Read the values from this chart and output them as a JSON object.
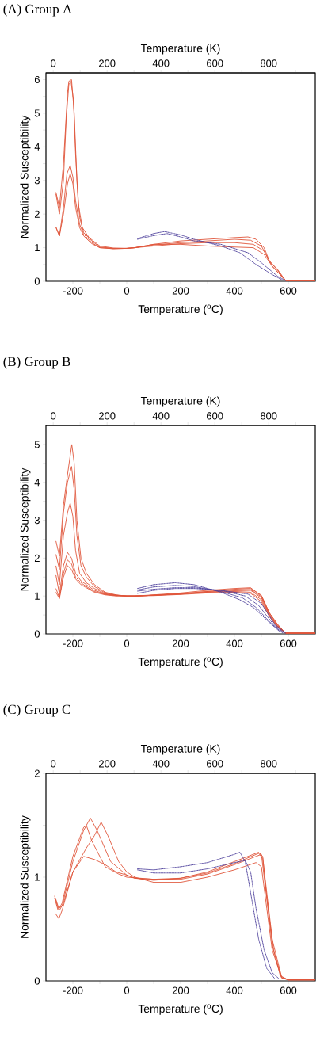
{
  "chart_data": [
    {
      "type": "line",
      "title": "(A) Group A",
      "xlabel": "Temperature ($^{o}$C)",
      "x2label": "Temperature (K)",
      "ylabel": "Normalized Susceptibility",
      "xlim": [
        -300,
        700
      ],
      "xticks": [
        -200,
        {
          "value": -100,
          "label": null
        },
        0,
        {
          "value": 100,
          "label": null
        },
        200,
        {
          "value": 300,
          "label": null
        },
        400,
        {
          "value": 500,
          "label": null
        },
        600
      ],
      "x2lim": [
        -27,
        973
      ],
      "x2ticks": [
        0,
        {
          "value": 100,
          "label": null
        },
        200,
        {
          "value": 300,
          "label": null
        },
        400,
        {
          "value": 500,
          "label": null
        },
        600,
        {
          "value": 700,
          "label": null
        },
        800,
        {
          "value": 900,
          "label": null
        }
      ],
      "ylim": [
        0,
        6.2
      ],
      "yticks": [
        0,
        {
          "value": 0.5,
          "label": null
        },
        1,
        {
          "value": 1.5,
          "label": null
        },
        2,
        {
          "value": 2.5,
          "label": null
        },
        3,
        {
          "value": 3.5,
          "label": null
        },
        4,
        {
          "value": 4.5,
          "label": null
        },
        5,
        {
          "value": 5.5,
          "label": null
        },
        6
      ],
      "series": [
        {
          "color": "#e0553a",
          "line_style": "solid",
          "x": [
            -263,
            -250,
            -235,
            -220,
            -215,
            -205,
            -195,
            -185,
            -175,
            -160,
            -130,
            -100,
            -50,
            0,
            30,
            100,
            200,
            300,
            400,
            450,
            480,
            510,
            530,
            560,
            590,
            700
          ],
          "values": [
            2.65,
            2.2,
            3.5,
            5.6,
            5.95,
            6.0,
            5.0,
            3.0,
            1.9,
            1.45,
            1.2,
            1.02,
            0.98,
            0.98,
            1.0,
            1.1,
            1.2,
            1.25,
            1.3,
            1.32,
            1.25,
            1.0,
            0.6,
            0.35,
            0.02,
            0.02
          ]
        },
        {
          "color": "#e0553a",
          "line_style": "solid",
          "x": [
            -263,
            -250,
            -235,
            -225,
            -215,
            -207,
            -198,
            -190,
            -180,
            -165,
            -140,
            -100,
            -50,
            0,
            30,
            100,
            200,
            300,
            400,
            460,
            500,
            530,
            560,
            590,
            700
          ],
          "values": [
            2.6,
            2.0,
            3.0,
            4.8,
            5.85,
            5.95,
            5.4,
            3.8,
            2.3,
            1.6,
            1.3,
            1.05,
            0.99,
            0.98,
            1.0,
            1.08,
            1.15,
            1.2,
            1.25,
            1.22,
            1.05,
            0.6,
            0.33,
            0.02,
            0.02
          ]
        },
        {
          "color": "#e0553a",
          "line_style": "solid",
          "x": [
            -263,
            -250,
            -235,
            -222,
            -210,
            -200,
            -190,
            -175,
            -160,
            -130,
            -100,
            -50,
            0,
            30,
            100,
            200,
            300,
            400,
            470,
            510,
            540,
            590,
            700
          ],
          "values": [
            1.62,
            1.35,
            2.2,
            3.2,
            3.45,
            3.1,
            2.4,
            1.7,
            1.4,
            1.15,
            1.0,
            0.97,
            0.98,
            1.0,
            1.1,
            1.1,
            1.05,
            1.02,
            1.0,
            0.8,
            0.45,
            0.02,
            0.02
          ]
        },
        {
          "color": "#e0553a",
          "line_style": "solid",
          "x": [
            -263,
            -250,
            -235,
            -220,
            -210,
            -200,
            -190,
            -175,
            -160,
            -130,
            -100,
            -50,
            0,
            30,
            100,
            200,
            300,
            400,
            470,
            510,
            540,
            590,
            700
          ],
          "values": [
            1.6,
            1.35,
            2.0,
            2.9,
            3.2,
            2.9,
            2.2,
            1.6,
            1.35,
            1.12,
            1.0,
            0.97,
            0.98,
            1.0,
            1.05,
            1.12,
            1.15,
            1.15,
            1.1,
            0.9,
            0.45,
            0.02,
            0.02
          ]
        },
        {
          "color": "#4b3d9a",
          "line_style": "dotted",
          "x": [
            40,
            100,
            140,
            200,
            250,
            350,
            420,
            480,
            540,
            580
          ],
          "values": [
            1.27,
            1.42,
            1.48,
            1.38,
            1.25,
            1.05,
            0.85,
            0.5,
            0.2,
            0.03
          ]
        },
        {
          "color": "#4b3d9a",
          "line_style": "dotted",
          "x": [
            40,
            100,
            150,
            200,
            250,
            350,
            450,
            500,
            560,
            590
          ],
          "values": [
            1.25,
            1.36,
            1.42,
            1.32,
            1.2,
            1.1,
            0.85,
            0.55,
            0.15,
            0.02
          ]
        }
      ]
    },
    {
      "type": "line",
      "title": "(B) Group B",
      "xlabel": "Temperature ($^{o}$C)",
      "x2label": "Temperature (K)",
      "ylabel": "Normalized Susceptibility",
      "xlim": [
        -300,
        700
      ],
      "xticks": [
        -200,
        {
          "value": -100,
          "label": null
        },
        0,
        {
          "value": 100,
          "label": null
        },
        200,
        {
          "value": 300,
          "label": null
        },
        400,
        {
          "value": 500,
          "label": null
        },
        600
      ],
      "x2lim": [
        -27,
        973
      ],
      "x2ticks": [
        0,
        {
          "value": 100,
          "label": null
        },
        200,
        {
          "value": 300,
          "label": null
        },
        400,
        {
          "value": 500,
          "label": null
        },
        600,
        {
          "value": 700,
          "label": null
        },
        800,
        {
          "value": 900,
          "label": null
        }
      ],
      "ylim": [
        0,
        5.5
      ],
      "yticks": [
        0,
        {
          "value": 0.5,
          "label": null
        },
        1,
        {
          "value": 1.5,
          "label": null
        },
        2,
        {
          "value": 2.5,
          "label": null
        },
        3,
        {
          "value": 3.5,
          "label": null
        },
        4,
        {
          "value": 4.5,
          "label": null
        },
        5
      ],
      "series": [
        {
          "color": "#e0553a",
          "line_style": "solid",
          "x": [
            -263,
            -250,
            -235,
            -220,
            -210,
            -204,
            -195,
            -185,
            -170,
            -150,
            -120,
            -80,
            -40,
            0,
            30,
            100,
            200,
            300,
            400,
            460,
            500,
            530,
            560,
            590,
            700
          ],
          "values": [
            2.45,
            2.05,
            3.4,
            4.2,
            4.7,
            5.0,
            4.5,
            3.0,
            2.0,
            1.6,
            1.3,
            1.1,
            1.03,
            1.0,
            1.0,
            1.03,
            1.08,
            1.15,
            1.2,
            1.22,
            1.0,
            0.55,
            0.25,
            0.02,
            0.02
          ]
        },
        {
          "color": "#e0553a",
          "line_style": "solid",
          "x": [
            -263,
            -250,
            -235,
            -220,
            -205,
            -195,
            -185,
            -170,
            -150,
            -120,
            -80,
            -40,
            0,
            30,
            100,
            200,
            300,
            400,
            460,
            500,
            530,
            560,
            590,
            700
          ],
          "values": [
            2.1,
            1.7,
            3.2,
            4.0,
            4.42,
            3.8,
            2.6,
            1.8,
            1.5,
            1.25,
            1.08,
            1.02,
            1.0,
            1.0,
            1.02,
            1.06,
            1.12,
            1.18,
            1.2,
            1.02,
            0.55,
            0.25,
            0.02,
            0.02
          ]
        },
        {
          "color": "#e0553a",
          "line_style": "solid",
          "x": [
            -263,
            -250,
            -235,
            -220,
            -210,
            -200,
            -190,
            -175,
            -150,
            -120,
            -80,
            -40,
            0,
            30,
            100,
            200,
            300,
            400,
            460,
            500,
            530,
            560,
            590,
            700
          ],
          "values": [
            1.8,
            1.3,
            2.6,
            3.2,
            3.45,
            3.1,
            2.2,
            1.6,
            1.35,
            1.2,
            1.06,
            1.02,
            1.0,
            1.0,
            1.02,
            1.06,
            1.12,
            1.16,
            1.17,
            0.98,
            0.52,
            0.22,
            0.02,
            0.02
          ]
        },
        {
          "color": "#e0553a",
          "line_style": "solid",
          "x": [
            -263,
            -250,
            -235,
            -220,
            -205,
            -190,
            -170,
            -150,
            -120,
            -80,
            -40,
            0,
            30,
            100,
            200,
            300,
            400,
            460,
            500,
            530,
            560,
            590,
            700
          ],
          "values": [
            1.55,
            1.05,
            1.8,
            2.15,
            2.0,
            1.6,
            1.4,
            1.3,
            1.15,
            1.05,
            1.02,
            1.0,
            1.0,
            1.02,
            1.05,
            1.1,
            1.14,
            1.15,
            0.95,
            0.5,
            0.2,
            0.02,
            0.02
          ]
        },
        {
          "color": "#e0553a",
          "line_style": "solid",
          "x": [
            -263,
            -250,
            -235,
            -220,
            -205,
            -190,
            -170,
            -150,
            -120,
            -80,
            -40,
            0,
            30,
            100,
            200,
            300,
            400,
            460,
            500,
            530,
            560,
            590,
            700
          ],
          "values": [
            1.2,
            0.95,
            1.6,
            1.95,
            1.85,
            1.5,
            1.35,
            1.25,
            1.12,
            1.04,
            1.01,
            1.0,
            1.0,
            1.02,
            1.05,
            1.1,
            1.12,
            1.1,
            0.9,
            0.48,
            0.2,
            0.02,
            0.02
          ]
        },
        {
          "color": "#e0553a",
          "line_style": "solid",
          "x": [
            -263,
            -250,
            -235,
            -220,
            -205,
            -190,
            -170,
            -150,
            -120,
            -80,
            -40,
            0,
            30,
            100,
            200,
            300,
            400,
            460,
            500,
            530,
            560,
            590,
            700
          ],
          "values": [
            1.1,
            0.93,
            1.5,
            1.8,
            1.7,
            1.45,
            1.3,
            1.22,
            1.1,
            1.03,
            1.0,
            1.0,
            1.0,
            1.01,
            1.04,
            1.08,
            1.1,
            1.07,
            0.85,
            0.45,
            0.18,
            0.02,
            0.02
          ]
        },
        {
          "color": "#4b3d9a",
          "line_style": "dotted",
          "x": [
            40,
            100,
            180,
            250,
            350,
            420,
            470,
            530,
            570
          ],
          "values": [
            1.2,
            1.3,
            1.35,
            1.3,
            1.1,
            0.9,
            0.7,
            0.3,
            0.05
          ]
        },
        {
          "color": "#4b3d9a",
          "line_style": "dotted",
          "x": [
            40,
            100,
            180,
            250,
            350,
            430,
            480,
            540,
            578
          ],
          "values": [
            1.16,
            1.24,
            1.28,
            1.25,
            1.12,
            0.95,
            0.7,
            0.25,
            0.03
          ]
        },
        {
          "color": "#4b3d9a",
          "line_style": "dotted",
          "x": [
            40,
            100,
            180,
            250,
            350,
            440,
            490,
            545,
            585
          ],
          "values": [
            1.13,
            1.18,
            1.22,
            1.22,
            1.15,
            1.0,
            0.75,
            0.25,
            0.02
          ]
        },
        {
          "color": "#4b3d9a",
          "line_style": "dotted",
          "x": [
            40,
            100,
            180,
            250,
            350,
            450,
            500,
            550,
            590
          ],
          "values": [
            1.07,
            1.15,
            1.2,
            1.2,
            1.15,
            1.05,
            0.8,
            0.25,
            0.02
          ]
        }
      ]
    },
    {
      "type": "line",
      "title": "(C) Group C",
      "xlabel": "Temperature ($^{o}$C)",
      "x2label": "Temperature (K)",
      "ylabel": "Normalized Susceptibility",
      "xlim": [
        -300,
        700
      ],
      "xticks": [
        -200,
        {
          "value": -100,
          "label": null
        },
        0,
        {
          "value": 100,
          "label": null
        },
        200,
        {
          "value": 300,
          "label": null
        },
        400,
        {
          "value": 500,
          "label": null
        },
        600
      ],
      "x2lim": [
        -27,
        973
      ],
      "x2ticks": [
        0,
        {
          "value": 100,
          "label": null
        },
        200,
        {
          "value": 300,
          "label": null
        },
        400,
        {
          "value": 500,
          "label": null
        },
        600,
        {
          "value": 700,
          "label": null
        },
        800,
        {
          "value": 900,
          "label": null
        }
      ],
      "ylim": [
        0,
        2
      ],
      "yticks": [
        0,
        {
          "value": 0.5,
          "label": null
        },
        1,
        {
          "value": 1.5,
          "label": null
        },
        2
      ],
      "series": [
        {
          "color": "#e0553a",
          "line_style": "solid",
          "x": [
            -268,
            -255,
            -240,
            -200,
            -160,
            -135,
            -110,
            -60,
            0,
            30,
            100,
            200,
            300,
            400,
            490,
            505,
            520,
            540,
            570,
            600,
            700
          ],
          "values": [
            0.82,
            0.7,
            0.72,
            1.15,
            1.45,
            1.57,
            1.45,
            1.15,
            1.02,
            0.99,
            0.97,
            0.99,
            1.05,
            1.15,
            1.24,
            1.2,
            0.8,
            0.35,
            0.05,
            0.01,
            0.01
          ]
        },
        {
          "color": "#e0553a",
          "line_style": "solid",
          "x": [
            -268,
            -255,
            -240,
            -200,
            -160,
            -150,
            -130,
            -80,
            -30,
            0,
            100,
            200,
            300,
            400,
            480,
            500,
            515,
            540,
            575,
            600,
            700
          ],
          "values": [
            0.8,
            0.68,
            0.75,
            1.2,
            1.48,
            1.5,
            1.35,
            1.1,
            1.03,
            1.0,
            0.98,
            0.98,
            1.03,
            1.12,
            1.2,
            1.22,
            0.9,
            0.4,
            0.04,
            0.01,
            0.01
          ]
        },
        {
          "color": "#e0553a",
          "line_style": "solid",
          "x": [
            -265,
            -252,
            -240,
            -200,
            -150,
            -120,
            -95,
            -70,
            -30,
            0,
            30,
            100,
            200,
            300,
            400,
            480,
            500,
            520,
            540,
            575,
            600,
            700
          ],
          "values": [
            0.65,
            0.6,
            0.68,
            1.05,
            1.28,
            1.4,
            1.53,
            1.4,
            1.15,
            1.05,
            1.0,
            0.95,
            0.95,
            1.0,
            1.07,
            1.14,
            1.1,
            0.7,
            0.3,
            0.03,
            0.01,
            0.01
          ]
        },
        {
          "color": "#e0553a",
          "line_style": "solid",
          "x": [
            -265,
            -250,
            -235,
            -200,
            -160,
            -120,
            -80,
            -40,
            0,
            30,
            100,
            200,
            300,
            400,
            490,
            505,
            520,
            545,
            575,
            600,
            700
          ],
          "values": [
            0.8,
            0.68,
            0.75,
            1.05,
            1.2,
            1.17,
            1.12,
            1.05,
            1.02,
            0.99,
            0.98,
            0.99,
            1.04,
            1.13,
            1.23,
            1.18,
            0.85,
            0.3,
            0.03,
            0.01,
            0.01
          ]
        },
        {
          "color": "#4b3d9a",
          "line_style": "dotted",
          "x": [
            40,
            100,
            200,
            300,
            400,
            420,
            440,
            460,
            490,
            520,
            550
          ],
          "values": [
            1.08,
            1.07,
            1.1,
            1.14,
            1.22,
            1.24,
            1.15,
            0.85,
            0.4,
            0.12,
            0.02
          ]
        },
        {
          "color": "#4b3d9a",
          "line_style": "dotted",
          "x": [
            40,
            100,
            200,
            300,
            400,
            440,
            460,
            480,
            510,
            540,
            570
          ],
          "values": [
            1.07,
            1.04,
            1.04,
            1.08,
            1.14,
            1.16,
            1.05,
            0.7,
            0.3,
            0.08,
            0.01
          ]
        }
      ]
    }
  ]
}
